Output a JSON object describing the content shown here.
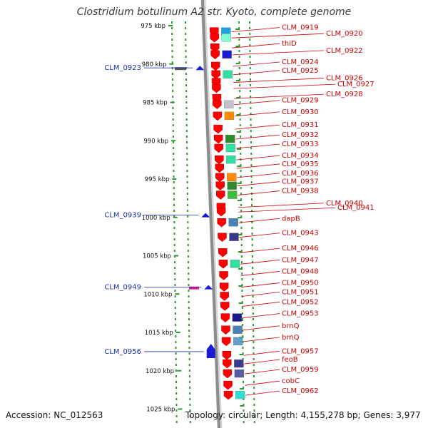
{
  "title": "Clostridium botulinum A2 str. Kyoto, complete genome",
  "accession": "Accession: NC_012563",
  "topology": "Topology: circular; Length: 4,155,278 bp; Genes: 3,977",
  "colors": {
    "right_label": "#cc0000",
    "left_label": "#1a2fb0",
    "backbone": "#8c8c8c",
    "tick_green": "#2a9a2a",
    "gene_red": "#ff0000",
    "gene_blue": "#1b1bd6"
  },
  "ruler": [
    {
      "kbp": 975,
      "label": "975 kbp"
    },
    {
      "kbp": 980,
      "label": "980 kbp"
    },
    {
      "kbp": 985,
      "label": "985 kbp"
    },
    {
      "kbp": 990,
      "label": "990 kbp"
    },
    {
      "kbp": 995,
      "label": "995 kbp"
    },
    {
      "kbp": 1000,
      "label": "1000 kbp"
    },
    {
      "kbp": 1005,
      "label": "1005 kbp"
    },
    {
      "kbp": 1010,
      "label": "1010 kbp"
    },
    {
      "kbp": 1015,
      "label": "1015 kbp"
    },
    {
      "kbp": 1020,
      "label": "1020 kbp"
    },
    {
      "kbp": 1025,
      "label": "1025 kbp"
    }
  ],
  "right_genes": [
    {
      "label": "CLM_0919",
      "kbp": 975.8,
      "level": 0,
      "color": "#1fa3e0"
    },
    {
      "label": "CLM_0920",
      "kbp": 976.6,
      "level": 1,
      "color": "#7fffd4"
    },
    {
      "label": "thiD",
      "kbp": 977.9,
      "level": 0,
      "color": "#ff0000"
    },
    {
      "label": "CLM_0922",
      "kbp": 978.8,
      "level": 1,
      "color": "#1b1bd6"
    },
    {
      "label": "CLM_0924",
      "kbp": 980.3,
      "level": 0,
      "color": "#ff0000"
    },
    {
      "label": "CLM_0925",
      "kbp": 981.4,
      "level": 0,
      "color": "#2fe0a0"
    },
    {
      "label": "CLM_0926",
      "kbp": 982.4,
      "level": 1,
      "color": "#ff0000"
    },
    {
      "label": "CLM_0927",
      "kbp": 983.2,
      "level": 2,
      "color": "#ff0000"
    },
    {
      "label": "CLM_0928",
      "kbp": 984.5,
      "level": 1,
      "color": "#ff0000"
    },
    {
      "label": "CLM_0929",
      "kbp": 985.3,
      "level": 0,
      "color": "#c0c0d0"
    },
    {
      "label": "CLM_0930",
      "kbp": 986.8,
      "level": 0,
      "color": "#ff8c00"
    },
    {
      "label": "CLM_0931",
      "kbp": 988.5,
      "level": 0,
      "color": "#ff0000"
    },
    {
      "label": "CLM_0932",
      "kbp": 989.8,
      "level": 0,
      "color": "#2e8b2e"
    },
    {
      "label": "CLM_0933",
      "kbp": 991.0,
      "level": 0,
      "color": "#2fe0a0"
    },
    {
      "label": "CLM_0934",
      "kbp": 992.5,
      "level": 0,
      "color": "#2fe0a0"
    },
    {
      "label": "CLM_0935",
      "kbp": 993.6,
      "level": 0,
      "color": "#ff0000"
    },
    {
      "label": "CLM_0936",
      "kbp": 994.8,
      "level": 0,
      "color": "#ff8c00"
    },
    {
      "label": "CLM_0937",
      "kbp": 995.9,
      "level": 0,
      "color": "#2e8b2e"
    },
    {
      "label": "CLM_0938",
      "kbp": 997.1,
      "level": 0,
      "color": "#3cbe3c"
    },
    {
      "label": "CLM_0940",
      "kbp": 998.7,
      "level": 1,
      "color": "#ff0000"
    },
    {
      "label": "CLM_0941",
      "kbp": 999.3,
      "level": 2,
      "color": "#ff0000"
    },
    {
      "label": "dapB",
      "kbp": 1000.7,
      "level": 0,
      "color": "#4682b4"
    },
    {
      "label": "CLM_0943",
      "kbp": 1002.6,
      "level": 0,
      "color": "#3a3a8c"
    },
    {
      "label": "CLM_0946",
      "kbp": 1004.6,
      "level": 0,
      "color": "#ff0000"
    },
    {
      "label": "CLM_0947",
      "kbp": 1006.1,
      "level": 0,
      "color": "#2fe0a0"
    },
    {
      "label": "CLM_0948",
      "kbp": 1007.6,
      "level": 0,
      "color": "#ff0000"
    },
    {
      "label": "CLM_0950",
      "kbp": 1009.1,
      "level": 0,
      "color": "#ff0000"
    },
    {
      "label": "CLM_0951",
      "kbp": 1010.3,
      "level": 0,
      "color": "#ff0000"
    },
    {
      "label": "CLM_0952",
      "kbp": 1011.6,
      "level": 0,
      "color": "#ff0000"
    },
    {
      "label": "CLM_0953",
      "kbp": 1013.1,
      "level": 0,
      "color": "#1a1a8c"
    },
    {
      "label": "brnQ",
      "kbp": 1014.7,
      "level": 0,
      "color": "#4682b4"
    },
    {
      "label": "brnQ",
      "kbp": 1016.2,
      "level": 0,
      "color": "#5fa0c8"
    },
    {
      "label": "CLM_0957",
      "kbp": 1018.0,
      "level": 0,
      "color": "#ff0000"
    },
    {
      "label": "feoB",
      "kbp": 1019.1,
      "level": 0,
      "color": "#3a3a8c"
    },
    {
      "label": "CLM_0959",
      "kbp": 1020.4,
      "level": 0,
      "color": "#5a5aa0"
    },
    {
      "label": "cobC",
      "kbp": 1021.9,
      "level": 0,
      "color": "#ff0000"
    },
    {
      "label": "CLM_0962",
      "kbp": 1023.2,
      "level": 0,
      "color": "#2fe0d0"
    }
  ],
  "left_genes": [
    {
      "label": "CLM_0923",
      "kbp": 980.6,
      "color": "#1b1bd6"
    },
    {
      "label": "CLM_0939",
      "kbp": 999.8,
      "color": "#1b1bd6"
    },
    {
      "label": "CLM_0949",
      "kbp": 1009.2,
      "color": "#1b1bd6"
    },
    {
      "label": "CLM_0956",
      "kbp": 1017.6,
      "color": "#1b1bd6"
    }
  ]
}
